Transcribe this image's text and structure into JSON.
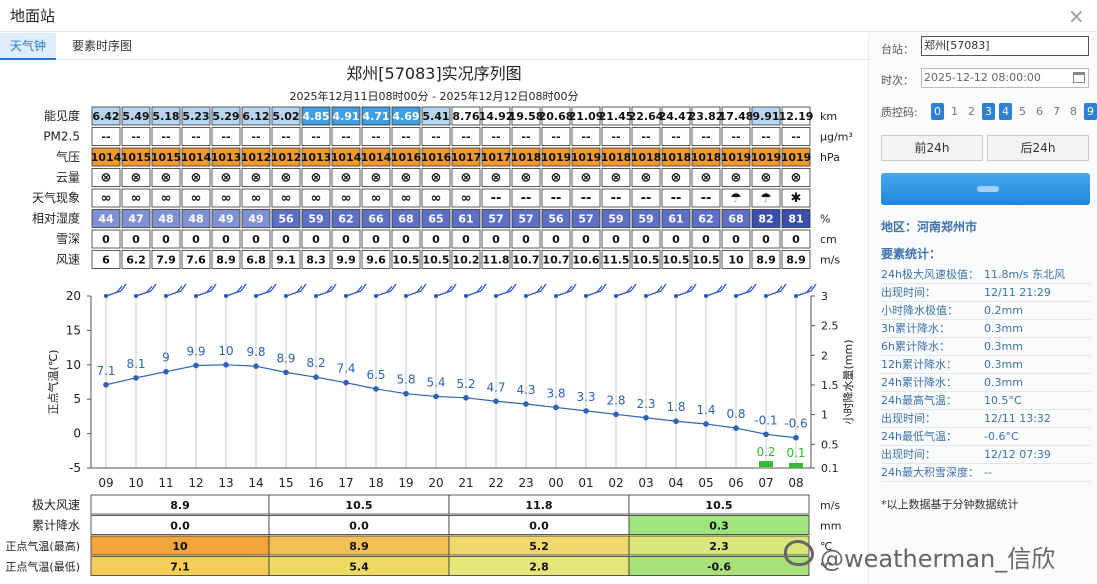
{
  "window": {
    "title": "地面站",
    "close": "×"
  },
  "tabs": [
    "天气钟",
    "要素时序图"
  ],
  "chart": {
    "title": "郑州[57083]实况序列图",
    "subtitle": "2025年12月11日08时00分 - 2025年12月12日08时00分"
  },
  "table": {
    "rows": [
      {
        "label": "能见度",
        "unit": "km",
        "values": [
          "6.42",
          "5.49",
          "5.18",
          "5.23",
          "5.29",
          "6.12",
          "5.02",
          "4.85",
          "4.91",
          "4.71",
          "4.69",
          "5.41",
          "8.76",
          "14.92",
          "19.58",
          "20.68",
          "21.09",
          "21.45",
          "22.64",
          "24.47",
          "23.82",
          "17.48",
          "9.91",
          "12.19"
        ]
      },
      {
        "label": "PM2.5",
        "unit": "μg/m³",
        "values": [
          "--",
          "--",
          "--",
          "--",
          "--",
          "--",
          "--",
          "--",
          "--",
          "--",
          "--",
          "--",
          "--",
          "--",
          "--",
          "--",
          "--",
          "--",
          "--",
          "--",
          "--",
          "--",
          "--",
          "--"
        ]
      },
      {
        "label": "气压",
        "unit": "hPa",
        "values": [
          "1014",
          "1015",
          "1015",
          "1014",
          "1013",
          "1012",
          "1012",
          "1013",
          "1014",
          "1014",
          "1016",
          "1016",
          "1017",
          "1017",
          "1018",
          "1019",
          "1019",
          "1018",
          "1018",
          "1018",
          "1018",
          "1019",
          "1019",
          "1019"
        ]
      },
      {
        "label": "云量",
        "unit": "",
        "values": [
          "⊗",
          "⊗",
          "⊗",
          "⊗",
          "⊗",
          "⊗",
          "⊗",
          "⊗",
          "⊗",
          "⊗",
          "⊗",
          "⊗",
          "⊗",
          "⊗",
          "⊗",
          "⊗",
          "⊗",
          "⊗",
          "⊗",
          "⊗",
          "⊗",
          "⊗",
          "⊗",
          "⊗"
        ]
      },
      {
        "label": "天气现象",
        "unit": "",
        "values": [
          "∞",
          "∞",
          "∞",
          "∞",
          "∞",
          "∞",
          "∞",
          "∞",
          "∞",
          "∞",
          "∞",
          "∞",
          "∞",
          "--",
          "--",
          "--",
          "--",
          "--",
          "--",
          "--",
          "--",
          "☂",
          "☂",
          "✱"
        ]
      },
      {
        "label": "相对湿度",
        "unit": "%",
        "values": [
          "44",
          "47",
          "48",
          "48",
          "49",
          "49",
          "56",
          "59",
          "62",
          "66",
          "68",
          "65",
          "61",
          "57",
          "57",
          "56",
          "57",
          "59",
          "59",
          "61",
          "62",
          "68",
          "82",
          "81"
        ]
      },
      {
        "label": "雪深",
        "unit": "cm",
        "values": [
          "0",
          "0",
          "0",
          "0",
          "0",
          "0",
          "0",
          "0",
          "0",
          "0",
          "0",
          "0",
          "0",
          "0",
          "0",
          "0",
          "0",
          "0",
          "0",
          "0",
          "0",
          "0",
          "0",
          "0"
        ]
      },
      {
        "label": "风速",
        "unit": "m/s",
        "values": [
          "6",
          "6.2",
          "7.9",
          "7.6",
          "8.9",
          "6.8",
          "9.1",
          "8.3",
          "9.9",
          "9.6",
          "10.5",
          "10.5",
          "10.2",
          "11.8",
          "10.7",
          "10.7",
          "10.6",
          "11.5",
          "10.5",
          "10.5",
          "10.5",
          "10",
          "8.9",
          "8.9"
        ]
      }
    ],
    "vis_bg": [
      "#b8d6f2",
      "#b8d6f2",
      "#b8d6f2",
      "#b8d6f2",
      "#b8d6f2",
      "#b8d6f2",
      "#b8d6f2",
      "#3f9ee6",
      "#3f9ee6",
      "#3f9ee6",
      "#3f9ee6",
      "#b8d6f2",
      "#ffffff",
      "#ffffff",
      "#ffffff",
      "#ffffff",
      "#ffffff",
      "#ffffff",
      "#ffffff",
      "#ffffff",
      "#ffffff",
      "#ffffff",
      "#b8d6f2",
      "#ffffff"
    ],
    "hum_bg": [
      "#7f91d3",
      "#7f91d3",
      "#7f91d3",
      "#7f91d3",
      "#7f91d3",
      "#7f91d3",
      "#5d70c5",
      "#5d70c5",
      "#5d70c5",
      "#5d70c5",
      "#5d70c5",
      "#5d70c5",
      "#5d70c5",
      "#5d70c5",
      "#5d70c5",
      "#5d70c5",
      "#5d70c5",
      "#5d70c5",
      "#5d70c5",
      "#5d70c5",
      "#5d70c5",
      "#5d70c5",
      "#3a4fae",
      "#3a4fae"
    ],
    "press_bg": "#f19a2c"
  },
  "chart_data": {
    "type": "line",
    "x": [
      "09",
      "10",
      "11",
      "12",
      "13",
      "14",
      "15",
      "16",
      "17",
      "18",
      "19",
      "20",
      "21",
      "22",
      "23",
      "00",
      "01",
      "02",
      "03",
      "04",
      "05",
      "06",
      "07",
      "08"
    ],
    "series": [
      {
        "values": [
          7.1,
          8.1,
          9,
          9.9,
          10,
          9.8,
          8.9,
          8.2,
          7.4,
          6.5,
          5.8,
          5.4,
          5.2,
          4.7,
          4.3,
          3.8,
          3.3,
          2.8,
          2.3,
          1.8,
          1.4,
          0.8,
          -0.1,
          -0.6
        ],
        "color": "#2f63b4"
      },
      {
        "values": [
          0,
          0,
          0,
          0,
          0,
          0,
          0,
          0,
          0,
          0,
          0,
          0,
          0,
          0,
          0,
          0,
          0,
          0,
          0,
          0,
          0,
          0,
          0.2,
          0.1
        ],
        "color": "#33bb33"
      }
    ],
    "y_left": {
      "label": "正点气温(℃)",
      "ylim": [
        -5,
        20
      ],
      "ticks": [
        20,
        15,
        10,
        5,
        0,
        -5
      ]
    },
    "y_right": {
      "label": "小时降水量(mm)",
      "ylim": [
        0.1,
        3
      ],
      "ticks": [
        "3",
        "2.5",
        "2",
        "1.5",
        "1",
        "0.5",
        "0.1"
      ]
    },
    "grid": true
  },
  "summary": {
    "rows": [
      {
        "label": "极大风速",
        "unit": "m/s",
        "values": [
          "8.9",
          "10.5",
          "11.8",
          "10.5"
        ]
      },
      {
        "label": "累计降水",
        "unit": "mm",
        "values": [
          "0.0",
          "0.0",
          "0.0",
          "0.3"
        ]
      },
      {
        "label": "正点气温(最高)",
        "unit": "℃",
        "values": [
          "10",
          "8.9",
          "5.2",
          "2.3"
        ]
      },
      {
        "label": "正点气温(最低)",
        "unit": "℃",
        "values": [
          "7.1",
          "5.4",
          "2.8",
          "-0.6"
        ]
      }
    ],
    "row_bg": [
      [
        "#ffffff",
        "#ffffff",
        "#ffffff",
        "#ffffff"
      ],
      [
        "#ffffff",
        "#ffffff",
        "#ffffff",
        "#9ee57d"
      ],
      [
        "#f3a53d",
        "#f0c055",
        "#f2d96c",
        "#d8e67a"
      ],
      [
        "#f5cd5b",
        "#f0da66",
        "#e6e67a",
        "#a8e07a"
      ]
    ]
  },
  "right": {
    "station_label": "台站：",
    "station_value": "郑州[57083]",
    "time_label": "时次：",
    "time_value": "2025-12-12 08:00:00",
    "qc_label": "质控码:",
    "qc_codes": [
      "0",
      "1",
      "2",
      "3",
      "4",
      "5",
      "6",
      "7",
      "8",
      "9"
    ],
    "qc_active": [
      0,
      3,
      4,
      9
    ],
    "prev_btn": "前24h",
    "next_btn": "后24h",
    "area": "地区：河南郑州市",
    "elem_title": "要素统计：",
    "stats": [
      {
        "k": "24h极大风速极值：",
        "v": "11.8m/s 东北风"
      },
      {
        "k": "出现时间：",
        "v": "12/11 21:29"
      },
      {
        "k": "小时降水极值：",
        "v": "0.2mm"
      },
      {
        "k": "3h累计降水：",
        "v": "0.3mm"
      },
      {
        "k": "6h累计降水：",
        "v": "0.3mm"
      },
      {
        "k": "12h累计降水：",
        "v": "0.3mm"
      },
      {
        "k": "24h累计降水：",
        "v": "0.3mm"
      },
      {
        "k": "24h最高气温：",
        "v": "10.5°C"
      },
      {
        "k": "出现时间：",
        "v": "12/11 13:32"
      },
      {
        "k": "24h最低气温：",
        "v": "-0.6°C"
      },
      {
        "k": "出现时间：",
        "v": "12/12 07:39"
      },
      {
        "k": "24h最大积雪深度：",
        "v": "--"
      }
    ],
    "note": "*以上数据基于分钟数据统计"
  },
  "watermark": "@weatherman_信欣"
}
